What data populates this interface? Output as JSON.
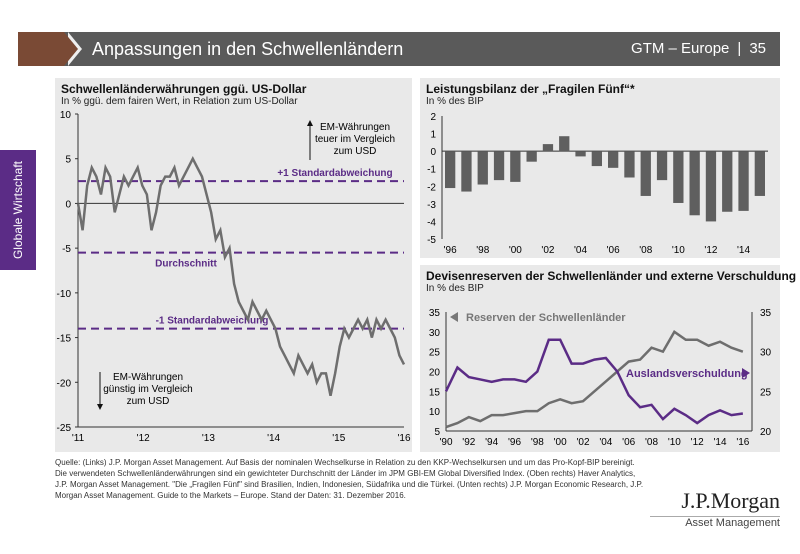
{
  "header": {
    "title": "Anpassungen in den Schwellenländern",
    "series": "GTM – Europe",
    "page": "35"
  },
  "side_tab": "Globale Wirtschaft",
  "colors": {
    "purple": "#5b2c86",
    "bar": "#5f5f5f",
    "line_gray": "#6e6e6e",
    "header": "#5a5a5a",
    "brown": "#7a4a35"
  },
  "chart_data": [
    {
      "type": "line",
      "title": "Schwellenländerwährungen ggü. US-Dollar",
      "subtitle": "In % ggü. dem fairen Wert, in Relation zum US-Dollar",
      "ylim": [
        -25,
        10
      ],
      "yticks": [
        10,
        5,
        0,
        -5,
        -10,
        -15,
        -20,
        -25
      ],
      "xlim": [
        2011,
        2016
      ],
      "xticks": [
        "'11",
        "'12",
        "'13",
        "'14",
        "'15",
        "'16"
      ],
      "values": [
        0,
        -3,
        2,
        4,
        3,
        1,
        4,
        3,
        -1,
        1,
        3,
        2,
        3,
        4,
        2,
        1,
        -3,
        -1,
        2,
        3,
        3,
        4,
        2,
        3,
        4,
        5,
        4,
        3,
        1,
        -1,
        -4,
        -3,
        -6,
        -5,
        -9,
        -11,
        -12,
        -13,
        -11,
        -12,
        -13,
        -12,
        -13,
        -14,
        -16,
        -17,
        -18,
        -19,
        -17,
        -18,
        -19,
        -18,
        -20,
        -19,
        -19,
        -21.5,
        -19,
        -16,
        -14,
        -15,
        -14,
        -13,
        -14,
        -13,
        -15,
        -13,
        -14,
        -13,
        -14,
        -15,
        -17,
        -18
      ],
      "reference_lines": [
        {
          "value": 2.5,
          "label": "+1 Standardabweichung"
        },
        {
          "value": -5.5,
          "label": "Durchschnitt"
        },
        {
          "value": -14,
          "label": "-1 Standardabweichung"
        }
      ],
      "annotations": {
        "up": "EM-Währungen teuer im Vergleich zum USD",
        "down": "EM-Währungen günstig im Vergleich zum USD"
      }
    },
    {
      "type": "bar",
      "title": "Leistungsbilanz der „Fragilen Fünf“*",
      "subtitle": "In % des BIP",
      "ylim": [
        -5,
        2
      ],
      "yticks": [
        2,
        1,
        0,
        -1,
        -2,
        -3,
        -4,
        -5
      ],
      "categories": [
        1996,
        1997,
        1998,
        1999,
        2000,
        2001,
        2002,
        2003,
        2004,
        2005,
        2006,
        2007,
        2008,
        2009,
        2010,
        2011,
        2012,
        2013,
        2014,
        2015
      ],
      "xticks": [
        "'96",
        "'98",
        "'00",
        "'02",
        "'04",
        "'06",
        "'08",
        "'10",
        "'12",
        "'14"
      ],
      "values": [
        -2.1,
        -2.3,
        -1.9,
        -1.65,
        -1.75,
        -0.6,
        0.4,
        0.85,
        -0.3,
        -0.85,
        -0.95,
        -1.5,
        -2.55,
        -1.65,
        -2.95,
        -3.65,
        -4.0,
        -3.45,
        -3.4,
        -2.55
      ]
    },
    {
      "type": "line",
      "title": "Devisenreserven der Schwellenländer und externe Verschuldung",
      "subtitle": "In % des BIP",
      "x": [
        1990,
        1991,
        1992,
        1993,
        1994,
        1995,
        1996,
        1997,
        1998,
        1999,
        2000,
        2001,
        2002,
        2003,
        2004,
        2005,
        2006,
        2007,
        2008,
        2009,
        2010,
        2011,
        2012,
        2013,
        2014,
        2015,
        2016
      ],
      "xlim": [
        1990,
        2016.8
      ],
      "xticks": [
        "'90",
        "'92",
        "'94",
        "'96",
        "'98",
        "'00",
        "'02",
        "'04",
        "'06",
        "'08",
        "'10",
        "'12",
        "'14",
        "'16"
      ],
      "ylim_left": [
        5,
        35
      ],
      "yticks_left": [
        35,
        30,
        25,
        20,
        15,
        10,
        5
      ],
      "ylim_right": [
        20,
        35
      ],
      "yticks_right": [
        35,
        30,
        25,
        20
      ],
      "series": [
        {
          "name": "Reserven der Schwellenländer",
          "axis": "left",
          "values": [
            6,
            7,
            8.5,
            7.5,
            9,
            9,
            9.5,
            10,
            10,
            12,
            13,
            12,
            12.5,
            15,
            17.5,
            20,
            22.5,
            23,
            26,
            25,
            30,
            28,
            28,
            26.5,
            27.5,
            26,
            25
          ]
        },
        {
          "name": "Auslandsverschuldung",
          "axis": "right",
          "values": [
            25,
            28,
            26.8,
            26.5,
            26.2,
            26.5,
            26.5,
            26.2,
            27.5,
            31.5,
            31.5,
            28.5,
            28.5,
            29,
            29.2,
            27.5,
            24.5,
            23,
            23.3,
            21.5,
            22.8,
            22,
            21,
            22,
            22.6,
            22,
            22.2
          ]
        }
      ]
    }
  ],
  "footer": "Quelle: (Links) J.P. Morgan Asset Management. Auf Basis der nominalen Wechselkurse in Relation zu den KKP-Wechselkursen und um das Pro-Kopf-BIP bereinigt. Die verwendeten Schwellenländerwährungen sind ein gewichteter Durchschnitt der Länder im JPM GBI-EM Global Diversified Index. (Oben rechts) Haver Analytics, J.P. Morgan Asset Management. \"Die „Fragilen Fünf\" sind Brasilien, Indien, Indonesien, Südafrika und die Türkei. (Unten rechts) J.P. Morgan Economic Research, J.P. Morgan Asset Management. Guide to the Markets – Europe. Stand der Daten: 31. Dezember 2016.",
  "logo": {
    "name": "J.P.Morgan",
    "sub": "Asset Management"
  }
}
